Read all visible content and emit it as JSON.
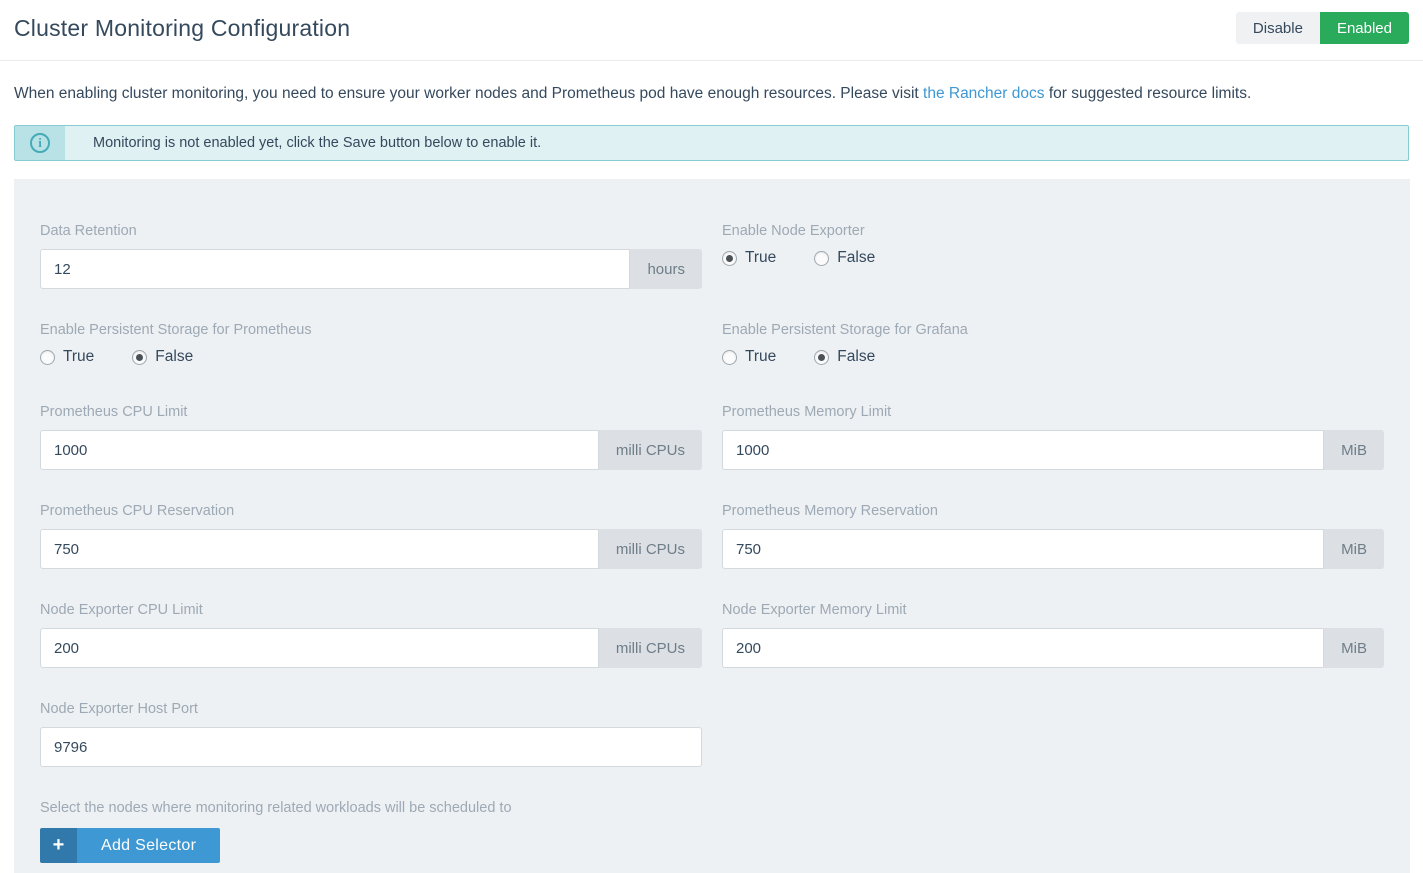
{
  "header": {
    "title": "Cluster Monitoring Configuration",
    "toggle": {
      "disable_label": "Disable",
      "enabled_label": "Enabled"
    }
  },
  "description": {
    "before_link": "When enabling cluster monitoring, you need to ensure your worker nodes and Prometheus pod have enough resources. Please visit ",
    "link_text": "the Rancher docs",
    "after_link": " for suggested resource limits."
  },
  "banner": {
    "icon": "info-icon",
    "icon_glyph": "i",
    "text": "Monitoring is not enabled yet, click the Save button below to enable it."
  },
  "form": {
    "fields": {
      "data_retention": {
        "label": "Data Retention",
        "value": "12",
        "addon": "hours"
      },
      "enable_node_exporter": {
        "label": "Enable Node Exporter",
        "options": [
          "True",
          "False"
        ],
        "selected": "True"
      },
      "persistent_prometheus": {
        "label": "Enable Persistent Storage for Prometheus",
        "options": [
          "True",
          "False"
        ],
        "selected": "False"
      },
      "persistent_grafana": {
        "label": "Enable Persistent Storage for Grafana",
        "options": [
          "True",
          "False"
        ],
        "selected": "False"
      },
      "prometheus_cpu_limit": {
        "label": "Prometheus CPU Limit",
        "value": "1000",
        "addon": "milli CPUs"
      },
      "prometheus_memory_limit": {
        "label": "Prometheus Memory Limit",
        "value": "1000",
        "addon": "MiB"
      },
      "prometheus_cpu_reservation": {
        "label": "Prometheus CPU Reservation",
        "value": "750",
        "addon": "milli CPUs"
      },
      "prometheus_memory_reservation": {
        "label": "Prometheus Memory Reservation",
        "value": "750",
        "addon": "MiB"
      },
      "node_exporter_cpu_limit": {
        "label": "Node Exporter CPU Limit",
        "value": "200",
        "addon": "milli CPUs"
      },
      "node_exporter_memory_limit": {
        "label": "Node Exporter Memory Limit",
        "value": "200",
        "addon": "MiB"
      },
      "node_exporter_host_port": {
        "label": "Node Exporter Host Port",
        "value": "9796"
      }
    },
    "selector": {
      "help_text": "Select the nodes where monitoring related workloads will be scheduled to",
      "button_label": "Add Selector",
      "plus_glyph": "+"
    }
  },
  "colors": {
    "enabled_green": "#2aab5c",
    "link_blue": "#3d98d3",
    "banner_teal_border": "#86ccd2",
    "banner_teal_bg": "#e0f1f3",
    "panel_bg": "#eef1f4",
    "primary_button_blue": "#3d98d3"
  }
}
